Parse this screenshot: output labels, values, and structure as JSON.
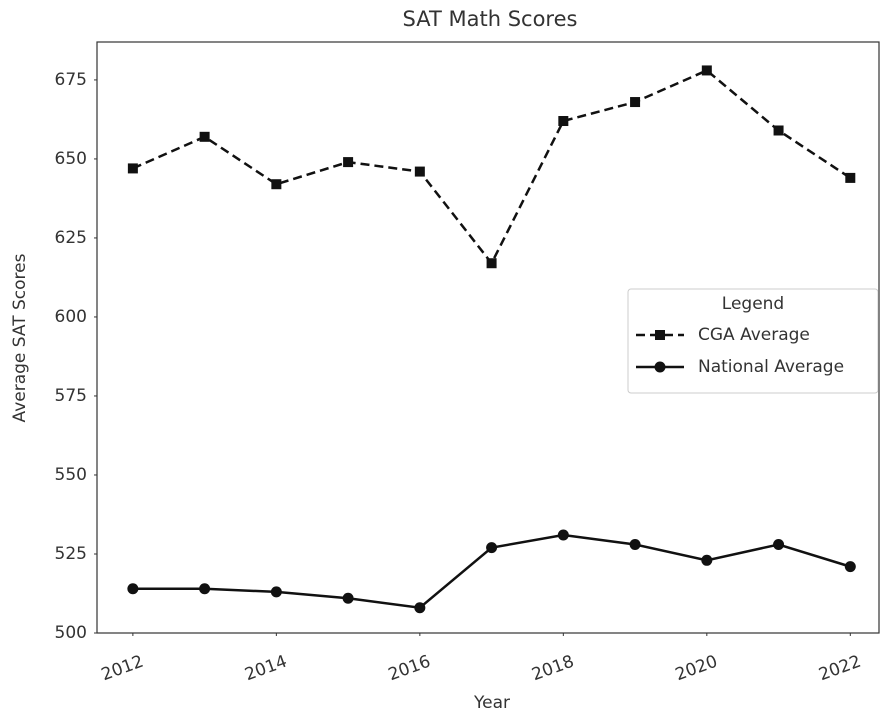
{
  "chart_data": {
    "type": "line",
    "title": "SAT Math Scores",
    "x_label": "Year",
    "y_label": "Average SAT Scores",
    "x": [
      2012,
      2013,
      2014,
      2015,
      2016,
      2017,
      2018,
      2019,
      2020,
      2021,
      2022
    ],
    "series": [
      {
        "name": "CGA Average",
        "color": "#111111",
        "linestyle": "dashed",
        "marker": "square",
        "values": [
          647,
          657,
          642,
          649,
          646,
          617,
          662,
          668,
          678,
          659,
          644
        ]
      },
      {
        "name": "National Average",
        "color": "#111111",
        "linestyle": "solid",
        "marker": "circle",
        "values": [
          514,
          514,
          513,
          511,
          508,
          527,
          531,
          528,
          523,
          528,
          521
        ]
      }
    ],
    "xlim": [
      2011.5,
      2022.4
    ],
    "xticks": [
      2012,
      2014,
      2016,
      2018,
      2020,
      2022
    ],
    "ylim": [
      500,
      687
    ],
    "yticks": [
      500,
      525,
      550,
      575,
      600,
      625,
      650,
      675
    ],
    "legend": {
      "title": "Legend",
      "position": "center right"
    },
    "grid": false
  }
}
